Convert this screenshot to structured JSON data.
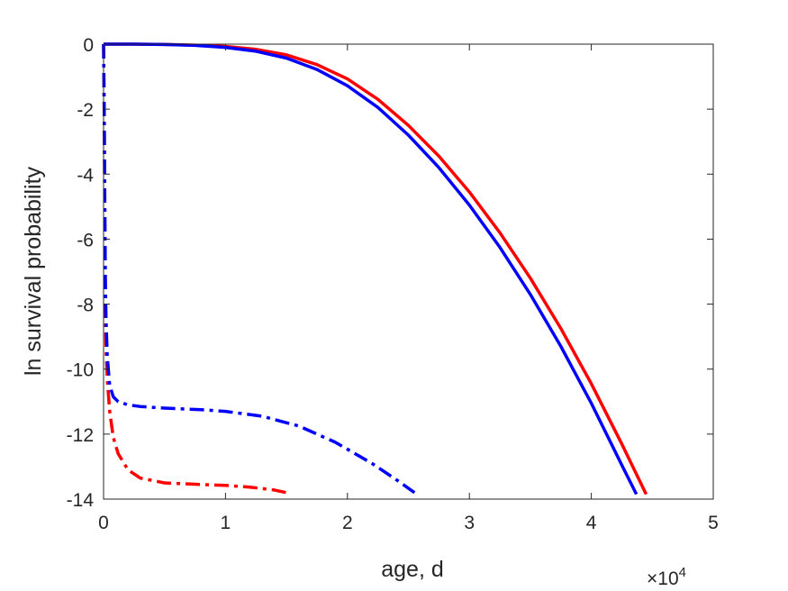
{
  "chart_data": {
    "type": "line",
    "title": "",
    "xlabel": "age, d",
    "ylabel": "ln survival probability",
    "x_exponent_label": {
      "base": "×10",
      "exponent": "4"
    },
    "x_scale_factor": 10000,
    "xlim": [
      0,
      50000
    ],
    "ylim": [
      -14,
      0
    ],
    "x_ticks": [
      0,
      10000,
      20000,
      30000,
      40000,
      50000
    ],
    "x_tick_labels": [
      "0",
      "1",
      "2",
      "3",
      "4",
      "5"
    ],
    "y_ticks": [
      0,
      -2,
      -4,
      -6,
      -8,
      -10,
      -12,
      -14
    ],
    "y_tick_labels": [
      "0",
      "-2",
      "-4",
      "-6",
      "-8",
      "-10",
      "-12",
      "-14"
    ],
    "grid": false,
    "legend": "none",
    "series": [
      {
        "color": "#ff0000",
        "style": "solid",
        "x": [
          0,
          2500,
          5000,
          7500,
          10000,
          12500,
          15000,
          17500,
          20000,
          22500,
          25000,
          27500,
          30000,
          32500,
          35000,
          37500,
          40000,
          42500,
          44500
        ],
        "y": [
          0,
          0,
          -0.01,
          -0.03,
          -0.07,
          -0.16,
          -0.33,
          -0.63,
          -1.07,
          -1.7,
          -2.5,
          -3.45,
          -4.55,
          -5.8,
          -7.2,
          -8.75,
          -10.45,
          -12.3,
          -13.85
        ]
      },
      {
        "color": "#0000ff",
        "style": "solid",
        "x": [
          0,
          2500,
          5000,
          7500,
          10000,
          12500,
          15000,
          17500,
          20000,
          22500,
          25000,
          27500,
          30000,
          32500,
          35000,
          37500,
          40000,
          42500,
          43700
        ],
        "y": [
          0,
          0,
          -0.01,
          -0.04,
          -0.1,
          -0.22,
          -0.43,
          -0.78,
          -1.28,
          -1.95,
          -2.8,
          -3.8,
          -4.95,
          -6.25,
          -7.7,
          -9.3,
          -11.05,
          -12.95,
          -13.85
        ]
      },
      {
        "color": "#ff0000",
        "style": "dashdot",
        "x": [
          0,
          50,
          100,
          150,
          200,
          300,
          500,
          800,
          1200,
          2000,
          3000,
          5000,
          8000,
          10000,
          12000,
          14000,
          15000
        ],
        "y": [
          0,
          -2,
          -5.5,
          -8,
          -9.3,
          -10.3,
          -11.3,
          -12.1,
          -12.6,
          -13.1,
          -13.35,
          -13.5,
          -13.55,
          -13.58,
          -13.63,
          -13.72,
          -13.8
        ]
      },
      {
        "color": "#0000ff",
        "style": "dashdot",
        "x": [
          0,
          50,
          100,
          150,
          200,
          300,
          500,
          800,
          1200,
          2000,
          3000,
          5000,
          8000,
          10000,
          13000,
          16000,
          19000,
          22000,
          24000,
          25500
        ],
        "y": [
          0,
          -2,
          -5,
          -7.2,
          -8.4,
          -9.6,
          -10.5,
          -10.85,
          -11.0,
          -11.1,
          -11.15,
          -11.2,
          -11.25,
          -11.3,
          -11.45,
          -11.75,
          -12.25,
          -12.9,
          -13.4,
          -13.8
        ]
      }
    ]
  }
}
